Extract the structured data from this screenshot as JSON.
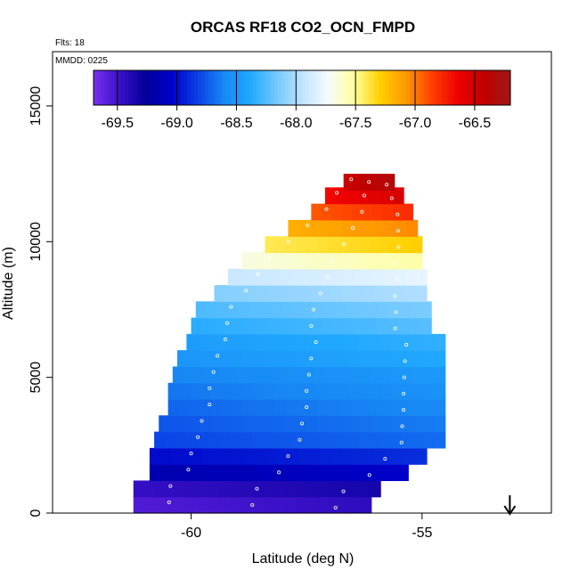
{
  "chart_data": {
    "type": "heatmap",
    "title": "ORCAS RF18 CO2_OCN_FMPD",
    "xlabel": "Latitude (deg N)",
    "ylabel": "Altitude (m)",
    "xlim": [
      -63,
      -52.2
    ],
    "ylim": [
      0,
      17000
    ],
    "x_ticks": [
      -60,
      -55
    ],
    "x_tick_labels": [
      "-60",
      "-55"
    ],
    "y_ticks": [
      0,
      5000,
      10000,
      15000
    ],
    "y_tick_labels": [
      "0",
      "5000",
      "10000",
      "15000"
    ],
    "flights_label": "Flts: 18",
    "date_label": "MMDD: 0225",
    "colorbar": {
      "min": -69.7,
      "max": -66.2,
      "ticks": [
        -69.5,
        -69.0,
        -68.5,
        -68.0,
        -67.5,
        -67.0,
        -66.5
      ],
      "tick_labels": [
        "-69.5",
        "-69.0",
        "-68.5",
        "-68.0",
        "-67.5",
        "-67.0",
        "-66.5"
      ],
      "colors": [
        "#7b2ff0",
        "#3a10c8",
        "#00009a",
        "#0000c8",
        "#0a40e6",
        "#1888f4",
        "#20a8ff",
        "#70c8ff",
        "#bfe3ff",
        "#f5fbff",
        "#ffff9c",
        "#ffd000",
        "#ff9800",
        "#ff4000",
        "#ee0000",
        "#c00000",
        "#a01818"
      ]
    },
    "profile": [
      {
        "alt": 300,
        "lat_min": -61.25,
        "lat_max": -56.1,
        "value": -69.5
      },
      {
        "alt": 900,
        "lat_min": -61.25,
        "lat_max": -55.9,
        "value": -69.4
      },
      {
        "alt": 1500,
        "lat_min": -60.9,
        "lat_max": -55.3,
        "value": -69.1
      },
      {
        "alt": 2100,
        "lat_min": -60.9,
        "lat_max": -54.9,
        "value": -68.95
      },
      {
        "alt": 2700,
        "lat_min": -60.8,
        "lat_max": -54.5,
        "value": -68.75
      },
      {
        "alt": 3300,
        "lat_min": -60.7,
        "lat_max": -54.5,
        "value": -68.7
      },
      {
        "alt": 3900,
        "lat_min": -60.5,
        "lat_max": -54.5,
        "value": -68.65
      },
      {
        "alt": 4500,
        "lat_min": -60.5,
        "lat_max": -54.5,
        "value": -68.6
      },
      {
        "alt": 5100,
        "lat_min": -60.4,
        "lat_max": -54.5,
        "value": -68.55
      },
      {
        "alt": 5700,
        "lat_min": -60.3,
        "lat_max": -54.5,
        "value": -68.45
      },
      {
        "alt": 6300,
        "lat_min": -60.1,
        "lat_max": -54.5,
        "value": -68.4
      },
      {
        "alt": 6900,
        "lat_min": -60.0,
        "lat_max": -54.8,
        "value": -68.3
      },
      {
        "alt": 7500,
        "lat_min": -59.9,
        "lat_max": -54.8,
        "value": -68.2
      },
      {
        "alt": 8100,
        "lat_min": -59.5,
        "lat_max": -54.9,
        "value": -68.05
      },
      {
        "alt": 8700,
        "lat_min": -59.2,
        "lat_max": -54.9,
        "value": -67.85
      },
      {
        "alt": 9300,
        "lat_min": -58.9,
        "lat_max": -55.0,
        "value": -67.6
      },
      {
        "alt": 9900,
        "lat_min": -58.4,
        "lat_max": -55.0,
        "value": -67.35
      },
      {
        "alt": 10500,
        "lat_min": -57.9,
        "lat_max": -55.1,
        "value": -67.1
      },
      {
        "alt": 11100,
        "lat_min": -57.4,
        "lat_max": -55.2,
        "value": -66.85
      },
      {
        "alt": 11700,
        "lat_min": -57.1,
        "lat_max": -55.4,
        "value": -66.6
      },
      {
        "alt": 12200,
        "lat_min": -56.7,
        "lat_max": -55.6,
        "value": -66.4
      }
    ],
    "arrow_lat": -53.1
  }
}
